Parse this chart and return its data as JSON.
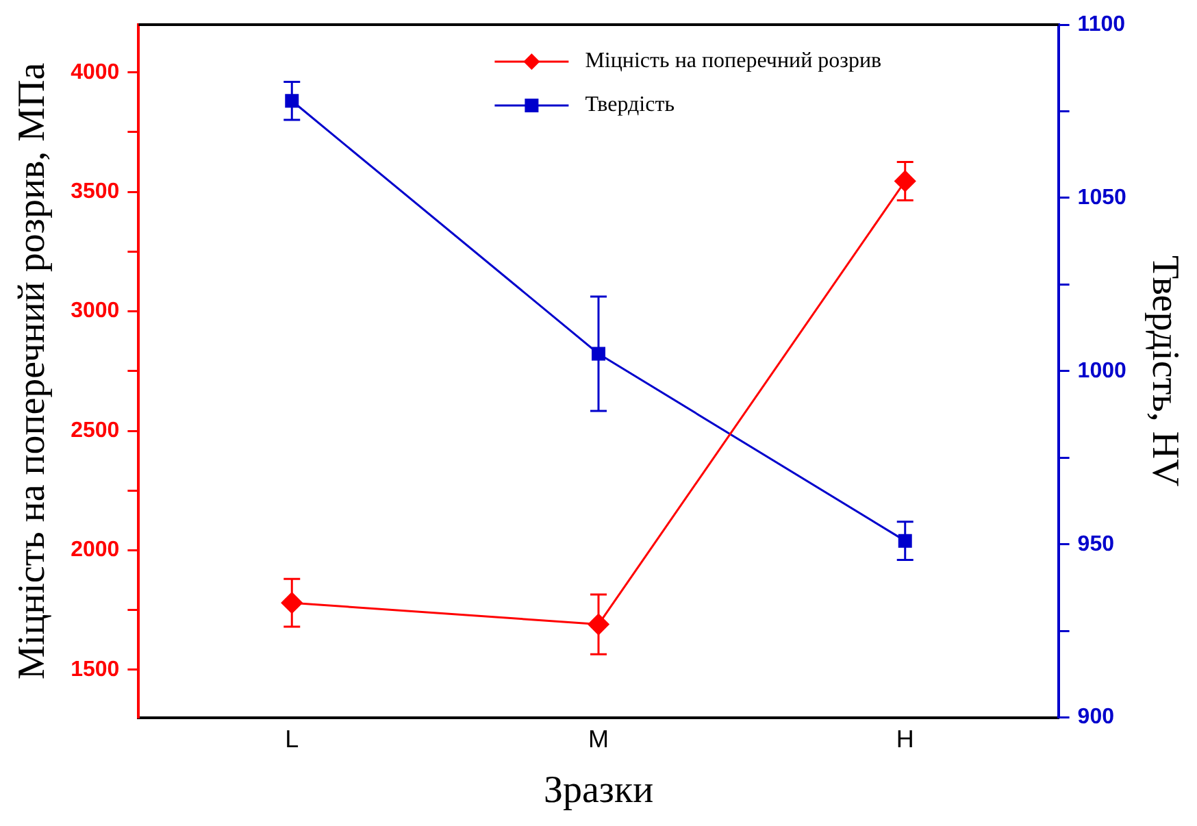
{
  "chart_data": {
    "type": "line",
    "xlabel": "Зразки",
    "ylabel": "Міцність на поперечний розрив, МПа",
    "y2label": "Твердість, HV",
    "categories": [
      "L",
      "M",
      "H"
    ],
    "series": [
      {
        "name": "Міцність на поперечний розрив",
        "color": "#ff0000",
        "marker": "diamond",
        "values": [
          1780,
          1690,
          3545
        ],
        "errors": [
          100,
          125,
          80
        ]
      },
      {
        "name": "Твердість",
        "color": "#0000cc",
        "marker": "square",
        "axis": "y2",
        "values": [
          1078,
          1005,
          951
        ],
        "errors": [
          5.5,
          16.5,
          5.5
        ]
      }
    ],
    "ylim": [
      1300,
      4200
    ],
    "yticks": [
      {
        "value": 1750,
        "label": null
      },
      1500,
      2000,
      {
        "value": 2250,
        "label": null
      },
      2500,
      {
        "value": 2750,
        "label": null
      },
      3000,
      {
        "value": 3250,
        "label": null
      },
      3500,
      {
        "value": 3750,
        "label": null
      },
      4000
    ],
    "y2lim": [
      900,
      1100
    ],
    "y2ticks": [
      900,
      {
        "value": 925,
        "label": null
      },
      950,
      {
        "value": 975,
        "label": null
      },
      1000,
      {
        "value": 1025,
        "label": null
      },
      1050,
      {
        "value": 1075,
        "label": null
      },
      1100
    ],
    "grid": false,
    "legend": "top",
    "line_style": "solid"
  }
}
